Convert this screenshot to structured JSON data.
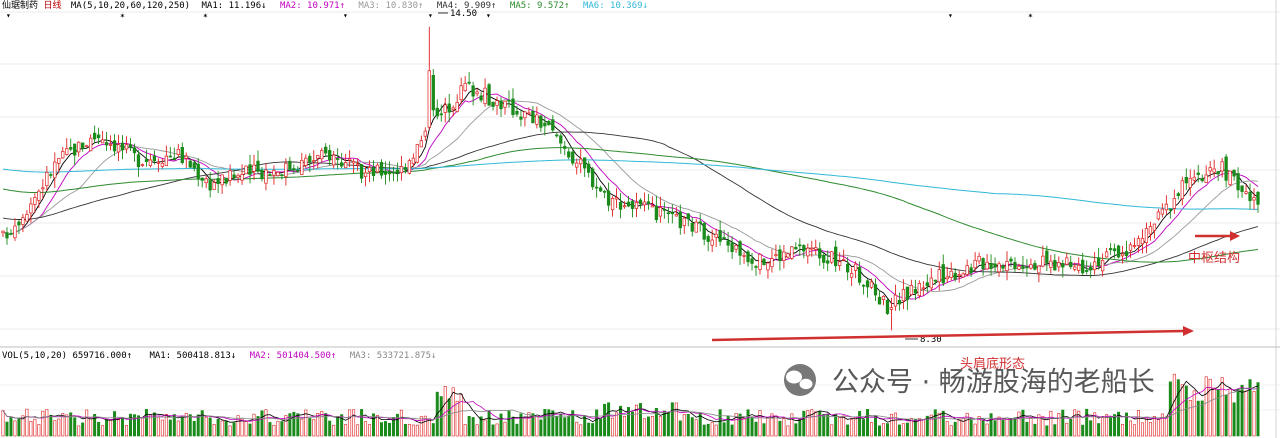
{
  "header": {
    "stock": "仙琚制药",
    "period": "日线",
    "ma_config": "MA(5,10,20,60,120,250)",
    "ma_items": [
      {
        "label": "MA1: 11.196↓",
        "color": "#000000"
      },
      {
        "label": "MA2: 10.971↑",
        "color": "#c000c0"
      },
      {
        "label": "MA3: 10.830↑",
        "color": "#999999"
      },
      {
        "label": "MA4: 9.909↑",
        "color": "#333333"
      },
      {
        "label": "MA5: 9.572↑",
        "color": "#2e8b2e"
      },
      {
        "label": "MA6: 10.369↓",
        "color": "#30b8d8"
      }
    ]
  },
  "volume_header": {
    "label": "VOL(5,10,20) 659716.000↑",
    "items": [
      {
        "label": "MA1: 500418.813↓",
        "color": "#000000"
      },
      {
        "label": "MA2: 501404.500↑",
        "color": "#c000c0"
      },
      {
        "label": "MA3: 533721.875↓",
        "color": "#888888"
      }
    ]
  },
  "annotations": {
    "high_label": "14.50",
    "low_label": "8.30",
    "pivot_label": "中枢结构",
    "hs_label": "头肩底形态"
  },
  "watermark": {
    "text": "公众号 · 畅游股海的老船长"
  },
  "colors": {
    "up": "#e02020",
    "down": "#1a8a1a",
    "ma5": "#000000",
    "ma10": "#c000c0",
    "ma20": "#999999",
    "ma60": "#333333",
    "ma120": "#2e8b2e",
    "ma250": "#30b8d8",
    "annotation": "#d03030"
  },
  "chart_data": {
    "type": "candlestick",
    "ylim": [
      8.0,
      14.8
    ],
    "high": 14.5,
    "low": 8.3,
    "anchors": [
      [
        0,
        10.2
      ],
      [
        6,
        10.8
      ],
      [
        14,
        11.8
      ],
      [
        24,
        12.3
      ],
      [
        34,
        11.8
      ],
      [
        44,
        11.9
      ],
      [
        52,
        11.3
      ],
      [
        60,
        11.5
      ],
      [
        70,
        11.6
      ],
      [
        82,
        11.9
      ],
      [
        90,
        11.5
      ],
      [
        100,
        11.6
      ],
      [
        108,
        12.5
      ],
      [
        116,
        13.3
      ],
      [
        126,
        12.9
      ],
      [
        136,
        12.5
      ],
      [
        152,
        11.0
      ],
      [
        160,
        10.8
      ],
      [
        174,
        10.4
      ],
      [
        190,
        9.7
      ],
      [
        202,
        10.0
      ],
      [
        214,
        9.5
      ],
      [
        222,
        8.8
      ],
      [
        232,
        9.3
      ],
      [
        246,
        9.7
      ],
      [
        258,
        9.7
      ],
      [
        270,
        9.6
      ],
      [
        284,
        10.0
      ],
      [
        296,
        11.2
      ],
      [
        306,
        11.6
      ],
      [
        314,
        10.9
      ]
    ]
  }
}
